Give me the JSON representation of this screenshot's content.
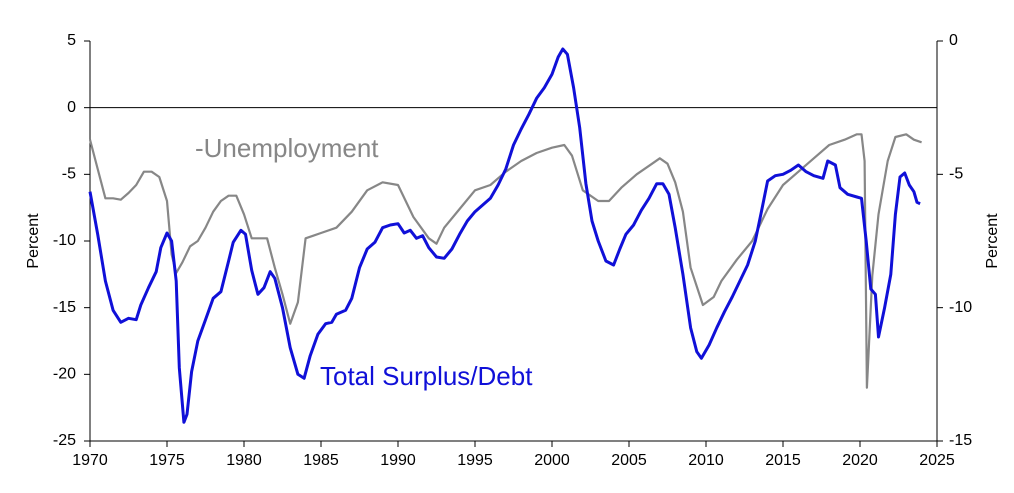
{
  "chart_data": {
    "type": "line",
    "y_label": "Percent",
    "y2_label": "Percent",
    "xlim": [
      1970,
      2025
    ],
    "xticks": [
      1970,
      1975,
      1980,
      1985,
      1990,
      1995,
      2000,
      2005,
      2010,
      2015,
      2020,
      2025
    ],
    "ylim": [
      -25,
      5
    ],
    "yticks": [
      -25,
      -20,
      -15,
      -10,
      -5,
      0,
      5
    ],
    "y2lim": [
      -15,
      0
    ],
    "y2ticks": [
      -15,
      -10,
      -5,
      0
    ],
    "reference_line": 0,
    "series": [
      {
        "name": "Total Surplus/Debt",
        "color": "#1010d8",
        "x": [
          1970.0,
          1970.5,
          1971,
          1971.5,
          1972,
          1972.5,
          1973,
          1973.3,
          1973.8,
          1974.3,
          1974.6,
          1975.0,
          1975.3,
          1975.6,
          1975.8,
          1976.1,
          1976.3,
          1976.6,
          1977,
          1977.5,
          1978,
          1978.5,
          1979,
          1979.3,
          1979.8,
          1980.1,
          1980.5,
          1980.9,
          1981.3,
          1981.7,
          1982,
          1982.5,
          1983,
          1983.5,
          1983.9,
          1984.3,
          1984.8,
          1985.3,
          1985.7,
          1986,
          1986.6,
          1987,
          1987.5,
          1988,
          1988.5,
          1989,
          1989.5,
          1990,
          1990.4,
          1990.8,
          1991.2,
          1991.6,
          1992,
          1992.5,
          1993,
          1993.5,
          1994,
          1994.5,
          1995,
          1995.5,
          1996,
          1996.5,
          1997,
          1997.5,
          1998,
          1998.5,
          1999,
          1999.5,
          2000,
          2000.4,
          2000.7,
          2001,
          2001.4,
          2001.8,
          2002.2,
          2002.6,
          2003,
          2003.5,
          2004,
          2004.4,
          2004.8,
          2005.3,
          2005.8,
          2006.3,
          2006.8,
          2007.2,
          2007.6,
          2008,
          2008.5,
          2009,
          2009.4,
          2009.7,
          2010.2,
          2010.7,
          2011.2,
          2011.7,
          2012.2,
          2012.7,
          2013.2,
          2013.6,
          2014,
          2014.5,
          2015,
          2015.5,
          2016,
          2016.5,
          2017,
          2017.6,
          2017.9,
          2018.4,
          2018.7,
          2019.2,
          2019.8,
          2020.1,
          2020.4,
          2020.7,
          2021.0,
          2021.2,
          2021.6,
          2022,
          2022.3,
          2022.6,
          2022.9,
          2023.2,
          2023.5,
          2023.7,
          2023.9
        ],
        "values": [
          -6.3,
          -9.5,
          -13,
          -15.2,
          -16.1,
          -15.8,
          -15.9,
          -14.8,
          -13.5,
          -12.3,
          -10.5,
          -9.4,
          -10,
          -13,
          -19.5,
          -23.6,
          -23,
          -19.8,
          -17.5,
          -15.9,
          -14.3,
          -13.8,
          -11.5,
          -10.1,
          -9.2,
          -9.5,
          -12.2,
          -14,
          -13.5,
          -12.3,
          -12.8,
          -15,
          -18,
          -20,
          -20.3,
          -18.6,
          -17,
          -16.2,
          -16.1,
          -15.5,
          -15.2,
          -14.3,
          -12,
          -10.6,
          -10.1,
          -9,
          -8.8,
          -8.7,
          -9.4,
          -9.2,
          -9.8,
          -9.6,
          -10.5,
          -11.2,
          -11.3,
          -10.6,
          -9.5,
          -8.5,
          -7.8,
          -7.3,
          -6.8,
          -5.8,
          -4.6,
          -2.8,
          -1.6,
          -0.5,
          0.7,
          1.5,
          2.5,
          3.8,
          4.4,
          4.0,
          1.5,
          -1.5,
          -5.7,
          -8.5,
          -10,
          -11.5,
          -11.8,
          -10.6,
          -9.5,
          -8.8,
          -7.7,
          -6.8,
          -5.7,
          -5.7,
          -6.5,
          -9,
          -12.5,
          -16.5,
          -18.3,
          -18.8,
          -17.8,
          -16.5,
          -15.3,
          -14.2,
          -13,
          -11.8,
          -10,
          -7.8,
          -5.5,
          -5.1,
          -5,
          -4.7,
          -4.3,
          -4.8,
          -5.1,
          -5.3,
          -4,
          -4.3,
          -6,
          -6.5,
          -6.7,
          -6.8,
          -10,
          -13.6,
          -14,
          -17.2,
          -15,
          -12.5,
          -8,
          -5.2,
          -4.9,
          -5.8,
          -6.3,
          -7.1,
          -7.2
        ]
      },
      {
        "name": "-Unemployment",
        "color": "#878787",
        "axis": "y2",
        "x": [
          1970,
          1970.5,
          1971,
          1971.5,
          1972,
          1972.5,
          1973,
          1973.5,
          1974,
          1974.5,
          1975,
          1975.3,
          1975.6,
          1976,
          1976.5,
          1977,
          1977.5,
          1978,
          1978.5,
          1979,
          1979.5,
          1980,
          1980.5,
          1981,
          1981.5,
          1982,
          1982.5,
          1983,
          1983.5,
          1984,
          1984.5,
          1985,
          1986,
          1987,
          1988,
          1989,
          1990,
          1991,
          1992,
          1992.5,
          1993,
          1994,
          1995,
          1996,
          1997,
          1998,
          1999,
          2000,
          2000.8,
          2001.3,
          2002,
          2003,
          2003.7,
          2004.5,
          2005.5,
          2006.5,
          2007,
          2007.5,
          2008,
          2008.5,
          2009,
          2009.8,
          2010.5,
          2011,
          2012,
          2013,
          2014,
          2015,
          2016,
          2017,
          2018,
          2019,
          2019.8,
          2020.1,
          2020.3,
          2020.45,
          2020.8,
          2021.2,
          2021.8,
          2022.3,
          2023,
          2023.5,
          2024
        ],
        "values": [
          -3.7,
          -4.8,
          -5.9,
          -5.9,
          -5.95,
          -5.7,
          -5.4,
          -4.9,
          -4.9,
          -5.1,
          -6.0,
          -8.0,
          -8.7,
          -8.3,
          -7.7,
          -7.5,
          -7.0,
          -6.4,
          -6.0,
          -5.8,
          -5.8,
          -6.5,
          -7.4,
          -7.4,
          -7.4,
          -8.5,
          -9.5,
          -10.6,
          -9.8,
          -7.4,
          -7.3,
          -7.2,
          -7.0,
          -6.4,
          -5.6,
          -5.3,
          -5.4,
          -6.6,
          -7.4,
          -7.6,
          -7.0,
          -6.3,
          -5.6,
          -5.4,
          -4.9,
          -4.5,
          -4.2,
          -4.0,
          -3.9,
          -4.3,
          -5.6,
          -6.0,
          -6.0,
          -5.5,
          -5.0,
          -4.6,
          -4.4,
          -4.6,
          -5.3,
          -6.4,
          -8.5,
          -9.9,
          -9.6,
          -9.0,
          -8.2,
          -7.5,
          -6.3,
          -5.4,
          -4.9,
          -4.4,
          -3.9,
          -3.7,
          -3.5,
          -3.5,
          -4.5,
          -13.0,
          -8.8,
          -6.5,
          -4.5,
          -3.6,
          -3.5,
          -3.7,
          -3.8
        ]
      }
    ]
  }
}
